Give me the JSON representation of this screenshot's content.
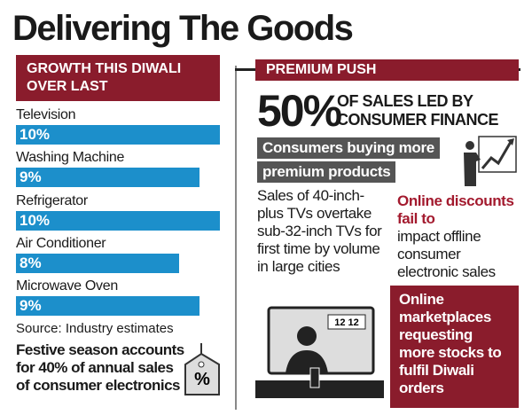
{
  "title": "Delivering The Goods",
  "chart_data": {
    "type": "bar",
    "orientation": "horizontal",
    "title": "GROWTH THIS DIWALI OVER LAST",
    "categories": [
      "Television",
      "Washing Machine",
      "Refrigerator",
      "Air Conditioner",
      "Microwave Oven"
    ],
    "values": [
      10,
      9,
      10,
      8,
      9
    ],
    "value_labels": [
      "10%",
      "9%",
      "10%",
      "8%",
      "9%"
    ],
    "color": "#1c8fcb",
    "source": "Source: Industry estimates"
  },
  "festive_note": "Festive season accounts for 40% of annual sales of consumer electronics",
  "tag_icon": "%",
  "premium": {
    "title": "PREMIUM PUSH",
    "headline_value": "50%",
    "headline_text": "OF SALES LED BY CONSUMER FINANCE",
    "subhead_lines": [
      "Consumers buying more",
      "premium products"
    ],
    "tv_text": "Sales of 40-inch-plus TVs overtake sub-32-inch TVs for first time by volume in large cities",
    "online_highlight": "Online discounts fail to",
    "online_text": "impact offline consumer electronic sales",
    "marketplaces": "Online marketplaces requesting more stocks to fulfil Diwali orders",
    "tv_screen": "12 12"
  }
}
